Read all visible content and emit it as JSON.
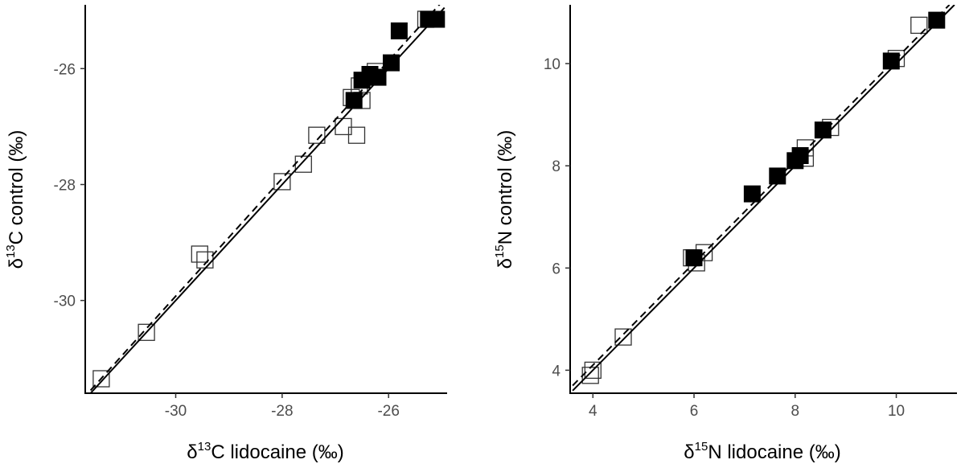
{
  "chart_data": [
    {
      "type": "scatter",
      "xlabel": {
        "pre": "δ",
        "sup": "13",
        "post": "C lidocaine (‰)"
      },
      "ylabel": {
        "pre": "δ",
        "sup": "13",
        "post": "C control (‰)"
      },
      "xlim": [
        -31.7,
        -24.9
      ],
      "ylim": [
        -31.6,
        -24.9
      ],
      "xticks": [
        -30,
        -28,
        -26
      ],
      "yticks": [
        -30,
        -28,
        -26
      ],
      "grid": false,
      "series": [
        {
          "marker": "open-square",
          "points": [
            [
              -31.4,
              -31.35
            ],
            [
              -30.55,
              -30.55
            ],
            [
              -29.55,
              -29.2
            ],
            [
              -29.45,
              -29.3
            ],
            [
              -28.0,
              -27.95
            ],
            [
              -27.6,
              -27.65
            ],
            [
              -27.35,
              -27.15
            ],
            [
              -26.85,
              -27.0
            ],
            [
              -26.6,
              -27.15
            ],
            [
              -26.7,
              -26.5
            ],
            [
              -26.5,
              -26.55
            ],
            [
              -26.55,
              -26.3
            ],
            [
              -26.25,
              -26.05
            ],
            [
              -25.3,
              -25.15
            ]
          ]
        },
        {
          "marker": "filled-square",
          "points": [
            [
              -26.65,
              -26.55
            ],
            [
              -26.5,
              -26.2
            ],
            [
              -26.35,
              -26.1
            ],
            [
              -26.2,
              -26.15
            ],
            [
              -25.95,
              -25.9
            ],
            [
              -25.8,
              -25.35
            ],
            [
              -25.25,
              -25.15
            ],
            [
              -25.1,
              -25.15
            ]
          ]
        }
      ],
      "lines": [
        {
          "style": "solid",
          "from": [
            -31.6,
            -31.6
          ],
          "to": [
            -24.95,
            -24.95
          ]
        },
        {
          "style": "dashed",
          "from": [
            -31.6,
            -31.55
          ],
          "to": [
            -24.95,
            -24.8
          ]
        }
      ]
    },
    {
      "type": "scatter",
      "xlabel": {
        "pre": "δ",
        "sup": "15",
        "post": "N lidocaine (‰)"
      },
      "ylabel": {
        "pre": "δ",
        "sup": "15",
        "post": "N control (‰)"
      },
      "xlim": [
        3.55,
        11.2
      ],
      "ylim": [
        3.55,
        11.15
      ],
      "xticks": [
        4,
        6,
        8,
        10
      ],
      "yticks": [
        4,
        6,
        8,
        10
      ],
      "grid": false,
      "series": [
        {
          "marker": "open-square",
          "points": [
            [
              3.95,
              3.9
            ],
            [
              4.0,
              4.0
            ],
            [
              4.6,
              4.65
            ],
            [
              5.95,
              6.2
            ],
            [
              6.05,
              6.1
            ],
            [
              6.2,
              6.3
            ],
            [
              8.2,
              8.15
            ],
            [
              8.2,
              8.35
            ],
            [
              8.7,
              8.75
            ],
            [
              10.0,
              10.1
            ],
            [
              10.45,
              10.75
            ]
          ]
        },
        {
          "marker": "filled-square",
          "points": [
            [
              6.0,
              6.2
            ],
            [
              7.15,
              7.45
            ],
            [
              7.65,
              7.8
            ],
            [
              8.0,
              8.1
            ],
            [
              8.1,
              8.2
            ],
            [
              8.55,
              8.7
            ],
            [
              9.9,
              10.05
            ],
            [
              10.8,
              10.85
            ]
          ]
        }
      ],
      "lines": [
        {
          "style": "solid",
          "from": [
            3.6,
            3.6
          ],
          "to": [
            11.15,
            11.15
          ]
        },
        {
          "style": "dashed",
          "from": [
            3.6,
            3.7
          ],
          "to": [
            11.05,
            11.15
          ]
        }
      ]
    }
  ]
}
